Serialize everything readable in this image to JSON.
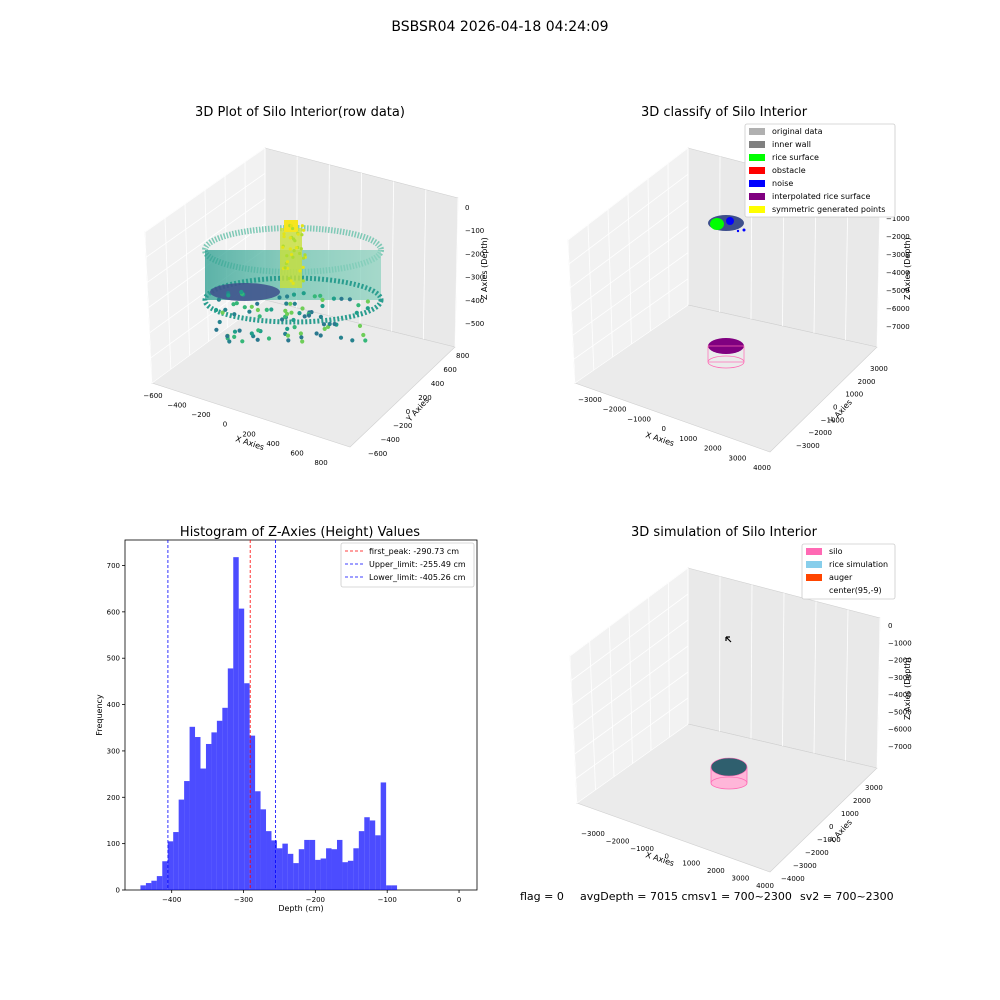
{
  "figure": {
    "suptitle": "BSBSR04 2026-04-18 04:24:09"
  },
  "panels": {
    "raw": {
      "title": "3D Plot of Silo Interior(row data)",
      "xlabel": "X Axies",
      "ylabel": "Y Axies",
      "zlabel": "Z Axies (Depth)",
      "xticks": [
        "−600",
        "−400",
        "−200",
        "0",
        "200",
        "400",
        "600",
        "800"
      ],
      "yticks": [
        "−600",
        "−400",
        "−200",
        "0",
        "200",
        "400",
        "600",
        "800"
      ],
      "zticks": [
        "0",
        "−100",
        "−200",
        "−300",
        "−400",
        "−500"
      ]
    },
    "classify": {
      "title": "3D classify of Silo Interior",
      "xlabel": "X Axies",
      "ylabel": "Y Axies",
      "zlabel": "Z Axies (Depth)",
      "xticks": [
        "−3000",
        "−2000",
        "−1000",
        "0",
        "1000",
        "2000",
        "3000",
        "4000"
      ],
      "yticks": [
        "−3000",
        "−2000",
        "−1000",
        "0",
        "1000",
        "2000",
        "3000"
      ],
      "zticks": [
        "0",
        "−1000",
        "−2000",
        "−3000",
        "−4000",
        "−5000",
        "−6000",
        "−7000"
      ],
      "legend": [
        {
          "label": "original data",
          "color": "#b0b0b0"
        },
        {
          "label": "inner wall",
          "color": "#808080"
        },
        {
          "label": "rice surface",
          "color": "#00ff00"
        },
        {
          "label": "obstacle",
          "color": "#ff0000"
        },
        {
          "label": "noise",
          "color": "#0000ff"
        },
        {
          "label": "interpolated rice surface",
          "color": "#800080"
        },
        {
          "label": "symmetric generated points",
          "color": "#ffff00"
        }
      ]
    },
    "simulation": {
      "title": "3D simulation of Silo Interior",
      "xlabel": "X Axies",
      "ylabel": "Y Axies",
      "zlabel": "Z Axies (Depth)",
      "xticks": [
        "−3000",
        "−2000",
        "−1000",
        "0",
        "1000",
        "2000",
        "3000",
        "4000"
      ],
      "yticks": [
        "−4000",
        "−3000",
        "−2000",
        "−1000",
        "0",
        "1000",
        "2000",
        "3000"
      ],
      "zticks": [
        "0",
        "−1000",
        "−2000",
        "−3000",
        "−4000",
        "−5000",
        "−6000",
        "−7000"
      ],
      "legend": [
        {
          "label": "silo",
          "color": "#ff69b4"
        },
        {
          "label": "rice simulation",
          "color": "#87ceeb"
        },
        {
          "label": "auger",
          "color": "#ff4500"
        },
        {
          "label": "center(95,-9)",
          "color": ""
        }
      ]
    },
    "info": {
      "flag": "flag = 0",
      "avg": "avgDepth = 7015 cmsv1 = 700~2300",
      "sv2": "sv2 = 700~2300"
    }
  },
  "chart_data": {
    "type": "bar",
    "title": "Histogram of Z-Axies (Height) Values",
    "xlabel": "Depth (cm)",
    "ylabel": "Frequency",
    "xlim": [
      -465,
      25
    ],
    "ylim": [
      0,
      755
    ],
    "xticks": [
      -400,
      -300,
      -200,
      -100,
      0
    ],
    "yticks": [
      0,
      100,
      200,
      300,
      400,
      500,
      600,
      700
    ],
    "bar_color": "#0000ff",
    "bin_width": 7.6,
    "bin_start": -443.5,
    "values": [
      10,
      15,
      20,
      30,
      62,
      105,
      125,
      195,
      235,
      352,
      330,
      262,
      315,
      340,
      365,
      393,
      478,
      718,
      607,
      446,
      333,
      213,
      174,
      127,
      107,
      90,
      100,
      78,
      58,
      88,
      108,
      108,
      65,
      68,
      90,
      88,
      108,
      60,
      63,
      90,
      127,
      157,
      150,
      118,
      232,
      10,
      10
    ],
    "vlines": [
      {
        "x": -290.73,
        "label": "first_peak: -290.73 cm",
        "color": "#ff0000"
      },
      {
        "x": -255.49,
        "label": "Upper_limit: -255.49 cm",
        "color": "#0000ff"
      },
      {
        "x": -405.26,
        "label": "Lower_limit: -405.26 cm",
        "color": "#0000ff"
      }
    ],
    "legend_position": "top-right"
  }
}
